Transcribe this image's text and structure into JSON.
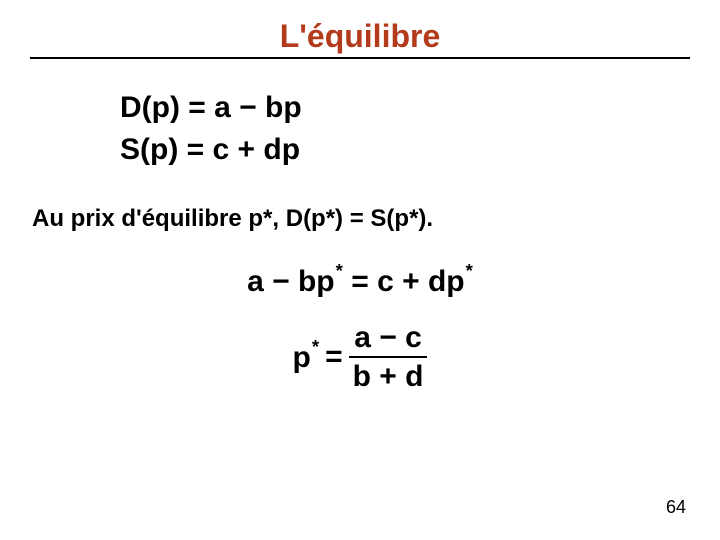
{
  "title": {
    "text": "L'équilibre",
    "color": "#b33a1a"
  },
  "equations": {
    "demand": "D(p) = a − bp",
    "supply": "S(p) = c + dp",
    "condition_text": "Au prix d'équilibre p*, D(p*) = S(p*).",
    "balance_lhs": "a − bp",
    "balance_rhs": "c + dp",
    "star": "*",
    "eq_sign": "=",
    "pstar_label": "p",
    "frac_num": "a − c",
    "frac_den": "b + d"
  },
  "page_number": "64",
  "styling": {
    "title_fontsize": 32,
    "eq_fontsize": 30,
    "subtext_fontsize": 24,
    "pagenum_fontsize": 18,
    "rule_color": "#000000",
    "background": "#ffffff",
    "text_color": "#000000"
  }
}
